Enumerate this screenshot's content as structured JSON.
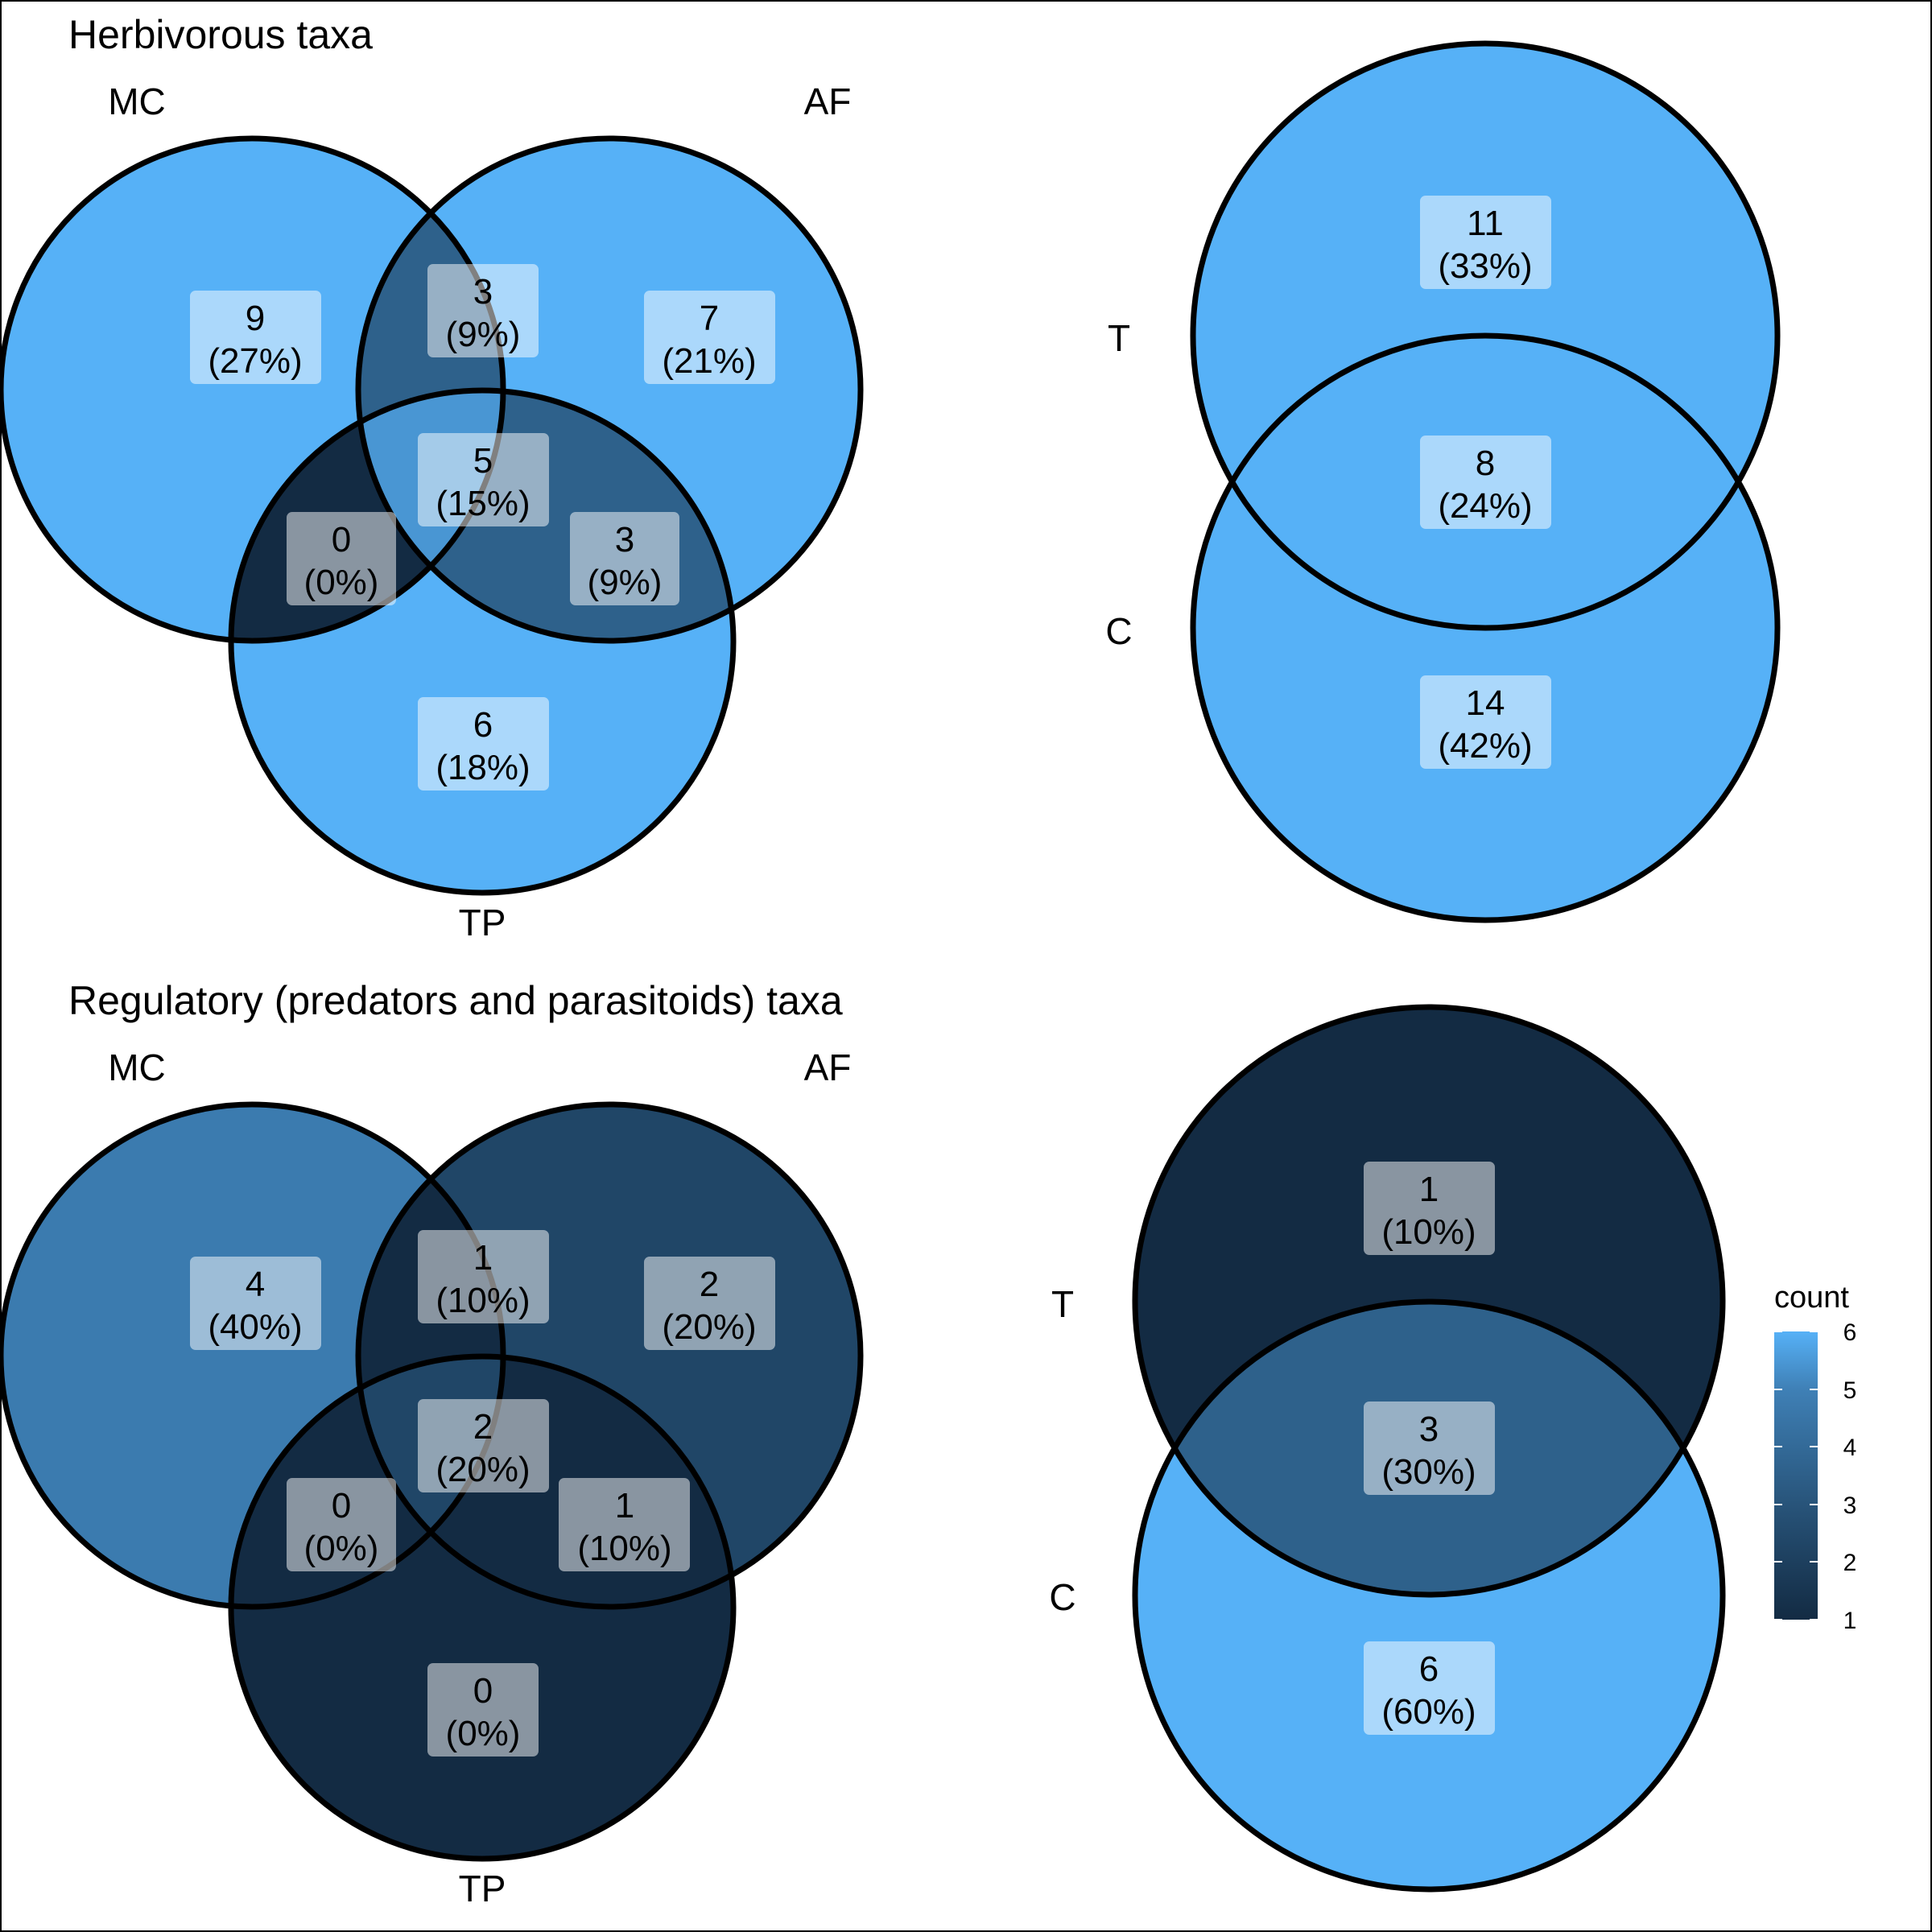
{
  "colors": {
    "low": "#132B43",
    "high": "#56B1F7",
    "outline": "#000000",
    "label_box": "#ffffff"
  },
  "panels": [
    {
      "id": "herb3",
      "title": "Herbivorous taxa",
      "sets": [
        "MC",
        "AF",
        "TP"
      ],
      "regions": [
        {
          "sets": [
            "MC"
          ],
          "count": 9,
          "percent": "(27%)"
        },
        {
          "sets": [
            "AF"
          ],
          "count": 7,
          "percent": "(21%)"
        },
        {
          "sets": [
            "TP"
          ],
          "count": 6,
          "percent": "(18%)"
        },
        {
          "sets": [
            "MC",
            "AF"
          ],
          "count": 3,
          "percent": "(9%)"
        },
        {
          "sets": [
            "MC",
            "TP"
          ],
          "count": 0,
          "percent": "(0%)"
        },
        {
          "sets": [
            "AF",
            "TP"
          ],
          "count": 3,
          "percent": "(9%)"
        },
        {
          "sets": [
            "MC",
            "AF",
            "TP"
          ],
          "count": 5,
          "percent": "(15%)"
        }
      ]
    },
    {
      "id": "herb2",
      "title": "",
      "sets": [
        "T",
        "C"
      ],
      "regions": [
        {
          "sets": [
            "T"
          ],
          "count": 11,
          "percent": "(33%)"
        },
        {
          "sets": [
            "T",
            "C"
          ],
          "count": 8,
          "percent": "(24%)"
        },
        {
          "sets": [
            "C"
          ],
          "count": 14,
          "percent": "(42%)"
        }
      ]
    },
    {
      "id": "reg3",
      "title": "Regulatory (predators and parasitoids) taxa",
      "sets": [
        "MC",
        "AF",
        "TP"
      ],
      "regions": [
        {
          "sets": [
            "MC"
          ],
          "count": 4,
          "percent": "(40%)"
        },
        {
          "sets": [
            "AF"
          ],
          "count": 2,
          "percent": "(20%)"
        },
        {
          "sets": [
            "TP"
          ],
          "count": 0,
          "percent": "(0%)"
        },
        {
          "sets": [
            "MC",
            "AF"
          ],
          "count": 1,
          "percent": "(10%)"
        },
        {
          "sets": [
            "MC",
            "TP"
          ],
          "count": 0,
          "percent": "(0%)"
        },
        {
          "sets": [
            "AF",
            "TP"
          ],
          "count": 1,
          "percent": "(10%)"
        },
        {
          "sets": [
            "MC",
            "AF",
            "TP"
          ],
          "count": 2,
          "percent": "(20%)"
        }
      ]
    },
    {
      "id": "reg2",
      "title": "",
      "sets": [
        "T",
        "C"
      ],
      "regions": [
        {
          "sets": [
            "T"
          ],
          "count": 1,
          "percent": "(10%)"
        },
        {
          "sets": [
            "T",
            "C"
          ],
          "count": 3,
          "percent": "(30%)"
        },
        {
          "sets": [
            "C"
          ],
          "count": 6,
          "percent": "(60%)"
        }
      ]
    }
  ],
  "legend": {
    "title": "count",
    "min": 1,
    "max": 6,
    "ticks": [
      "1",
      "2",
      "3",
      "4",
      "5",
      "6"
    ]
  }
}
